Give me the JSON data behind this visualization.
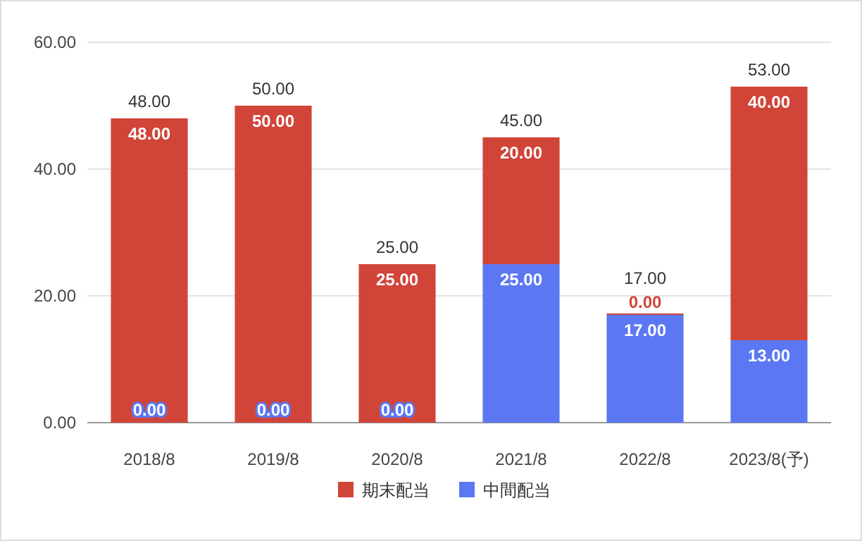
{
  "chart_data": {
    "type": "bar",
    "stacked": true,
    "categories": [
      "2018/8",
      "2019/8",
      "2020/8",
      "2021/8",
      "2022/8",
      "2023/8(予)"
    ],
    "series": [
      {
        "name": "中間配当",
        "color": "#5b78f2",
        "values": [
          0,
          0,
          0,
          25,
          17,
          13
        ],
        "value_labels": [
          "0.00",
          "0.00",
          "0.00",
          "25.00",
          "17.00",
          "13.00"
        ]
      },
      {
        "name": "期末配当",
        "color": "#d14438",
        "values": [
          48,
          50,
          25,
          20,
          0,
          40
        ],
        "value_labels": [
          "48.00",
          "50.00",
          "25.00",
          "20.00",
          "0.00",
          "40.00"
        ]
      }
    ],
    "totals": [
      "48.00",
      "50.00",
      "25.00",
      "45.00",
      "17.00",
      "53.00"
    ],
    "ylim": [
      0,
      60
    ],
    "yticks": [
      {
        "value": 0,
        "label": "0.00"
      },
      {
        "value": 20,
        "label": "20.00"
      },
      {
        "value": 40,
        "label": "40.00"
      },
      {
        "value": 60,
        "label": "60.00"
      }
    ],
    "grid": "y",
    "legend": "bottom"
  }
}
